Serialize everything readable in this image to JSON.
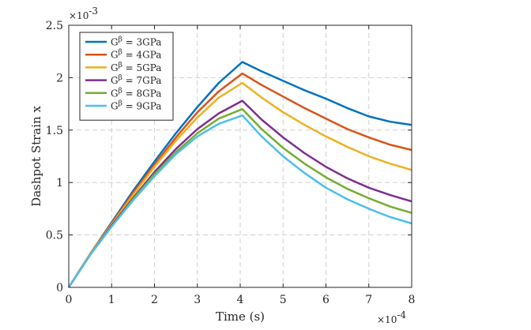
{
  "chart_data": {
    "type": "line",
    "xlabel": "Time (s)",
    "ylabel": "Dashpot Strain x",
    "x_exponent_label": "×10",
    "x_exponent_power": "-4",
    "y_exponent_label": "×10",
    "y_exponent_power": "-3",
    "xlim": [
      0,
      8
    ],
    "ylim": [
      0,
      2.5
    ],
    "x_ticks": [
      "0",
      "1",
      "2",
      "3",
      "4",
      "5",
      "6",
      "7",
      "8"
    ],
    "y_ticks": [
      "0",
      "0.5",
      "1",
      "1.5",
      "2",
      "2.5"
    ],
    "x_tick_values": [
      0,
      1,
      2,
      3,
      4,
      5,
      6,
      7,
      8
    ],
    "y_tick_values": [
      0,
      0.5,
      1,
      1.5,
      2,
      2.5
    ],
    "grid": true,
    "legend_position": "top-left",
    "x": [
      0,
      0.5,
      1,
      1.5,
      2,
      2.5,
      3,
      3.5,
      4.05,
      4.5,
      5,
      5.5,
      6,
      6.5,
      7,
      7.5,
      8
    ],
    "series": [
      {
        "name": "G^β = 3GPa",
        "legend_prefix": "G",
        "legend_sup": "β",
        "legend_suffix": " = 3GPa",
        "color": "#0072BD",
        "values": [
          0,
          0.32,
          0.62,
          0.92,
          1.2,
          1.47,
          1.72,
          1.95,
          2.15,
          2.06,
          1.97,
          1.88,
          1.8,
          1.71,
          1.63,
          1.58,
          1.55
        ]
      },
      {
        "name": "G^β = 4GPa",
        "legend_prefix": "G",
        "legend_sup": "β",
        "legend_suffix": " = 4GPa",
        "color": "#D95319",
        "values": [
          0,
          0.32,
          0.61,
          0.9,
          1.17,
          1.43,
          1.67,
          1.87,
          2.04,
          1.93,
          1.82,
          1.71,
          1.61,
          1.51,
          1.43,
          1.36,
          1.31
        ]
      },
      {
        "name": "G^β = 5GPa",
        "legend_prefix": "G",
        "legend_sup": "β",
        "legend_suffix": " = 5GPa",
        "color": "#EDB120",
        "values": [
          0,
          0.32,
          0.6,
          0.88,
          1.15,
          1.4,
          1.62,
          1.81,
          1.95,
          1.81,
          1.67,
          1.55,
          1.44,
          1.34,
          1.25,
          1.18,
          1.12
        ]
      },
      {
        "name": "G^β = 7GPa",
        "legend_prefix": "G",
        "legend_sup": "β",
        "legend_suffix": " = 7GPa",
        "color": "#7E2F8E",
        "values": [
          0,
          0.31,
          0.59,
          0.85,
          1.1,
          1.32,
          1.51,
          1.66,
          1.78,
          1.6,
          1.43,
          1.28,
          1.15,
          1.04,
          0.95,
          0.88,
          0.82
        ]
      },
      {
        "name": "G^β = 8GPa",
        "legend_prefix": "G",
        "legend_sup": "β",
        "legend_suffix": " = 8GPa",
        "color": "#77AC30",
        "values": [
          0,
          0.31,
          0.58,
          0.84,
          1.08,
          1.29,
          1.47,
          1.61,
          1.7,
          1.51,
          1.33,
          1.18,
          1.05,
          0.94,
          0.85,
          0.77,
          0.71
        ]
      },
      {
        "name": "G^β = 9GPa",
        "legend_prefix": "G",
        "legend_sup": "β",
        "legend_suffix": " = 9GPa",
        "color": "#4DBEEE",
        "values": [
          0,
          0.31,
          0.58,
          0.83,
          1.06,
          1.27,
          1.44,
          1.56,
          1.64,
          1.44,
          1.25,
          1.09,
          0.95,
          0.84,
          0.75,
          0.67,
          0.61
        ]
      }
    ]
  }
}
